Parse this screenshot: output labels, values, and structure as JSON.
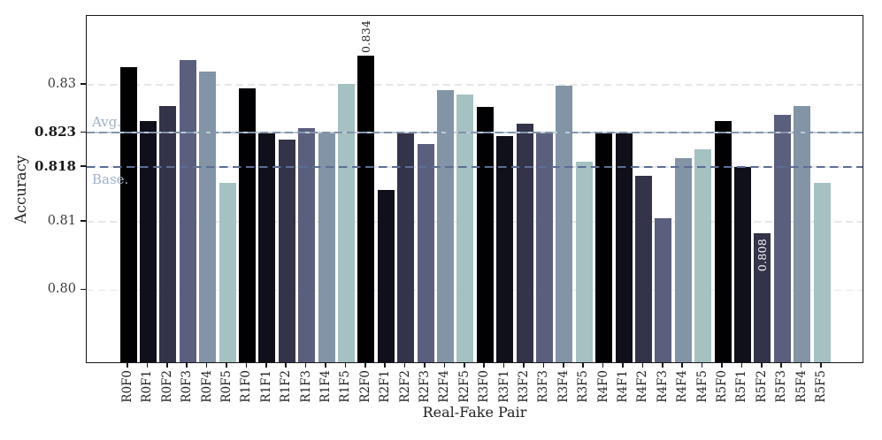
{
  "chart_data": {
    "type": "bar",
    "title": "",
    "xlabel": "Real-Fake Pair",
    "ylabel": "Accuracy",
    "categories": [
      "R0F0",
      "R0F1",
      "R0F2",
      "R0F3",
      "R0F4",
      "R0F5",
      "R1F0",
      "R1F1",
      "R1F2",
      "R1F3",
      "R1F4",
      "R1F5",
      "R2F0",
      "R2F1",
      "R2F2",
      "R2F3",
      "R2F4",
      "R2F5",
      "R3F0",
      "R3F1",
      "R3F2",
      "R3F3",
      "R3F4",
      "R3F5",
      "R4F0",
      "R4F1",
      "R4F2",
      "R4F3",
      "R4F4",
      "R4F5",
      "R5F0",
      "R5F1",
      "R5F2",
      "R5F3",
      "R5F4",
      "R5F5"
    ],
    "values": [
      0.8323,
      0.8245,
      0.8267,
      0.8334,
      0.8317,
      0.8154,
      0.8293,
      0.8226,
      0.8217,
      0.8234,
      0.8227,
      0.8299,
      0.834,
      0.8144,
      0.8226,
      0.8211,
      0.829,
      0.8283,
      0.8265,
      0.8223,
      0.8241,
      0.8228,
      0.8296,
      0.8185,
      0.8228,
      0.8228,
      0.8164,
      0.8102,
      0.8191,
      0.8203,
      0.8245,
      0.8177,
      0.808,
      0.8254,
      0.8267,
      0.8154
    ],
    "bar_color_cycle": [
      "#010104",
      "#10101a",
      "#333349",
      "#5b5f7e",
      "#8294a6",
      "#a5c1c1"
    ],
    "ylim": [
      0.7892,
      0.8401
    ],
    "yticks": [
      {
        "value": 0.8,
        "label": "0.80",
        "bold": false
      },
      {
        "value": 0.81,
        "label": "0.81",
        "bold": false
      },
      {
        "value": 0.818,
        "label": "0.818",
        "bold": true
      },
      {
        "value": 0.823,
        "label": "0.823",
        "bold": true
      },
      {
        "value": 0.83,
        "label": "0.83",
        "bold": false
      }
    ],
    "grid": "horizontal dashed light-gray at each ytick",
    "legend_position": "none",
    "reference_lines": [
      {
        "label": "Avg.",
        "value": 0.823,
        "style": "solid",
        "line_color": "#8094aa",
        "label_color": "#9fb2c8"
      },
      {
        "label": "Base.",
        "value": 0.818,
        "style": "dashed",
        "line_color": "#5d6d94",
        "label_color": "#9fb2c8"
      }
    ],
    "annotations": [
      {
        "category": "R2F0",
        "text": "0.834",
        "placement": "above-bar",
        "color": "#1c1c1c"
      },
      {
        "category": "R5F2",
        "text": "0.808",
        "placement": "inside-top",
        "color": "#ffffff"
      }
    ]
  }
}
